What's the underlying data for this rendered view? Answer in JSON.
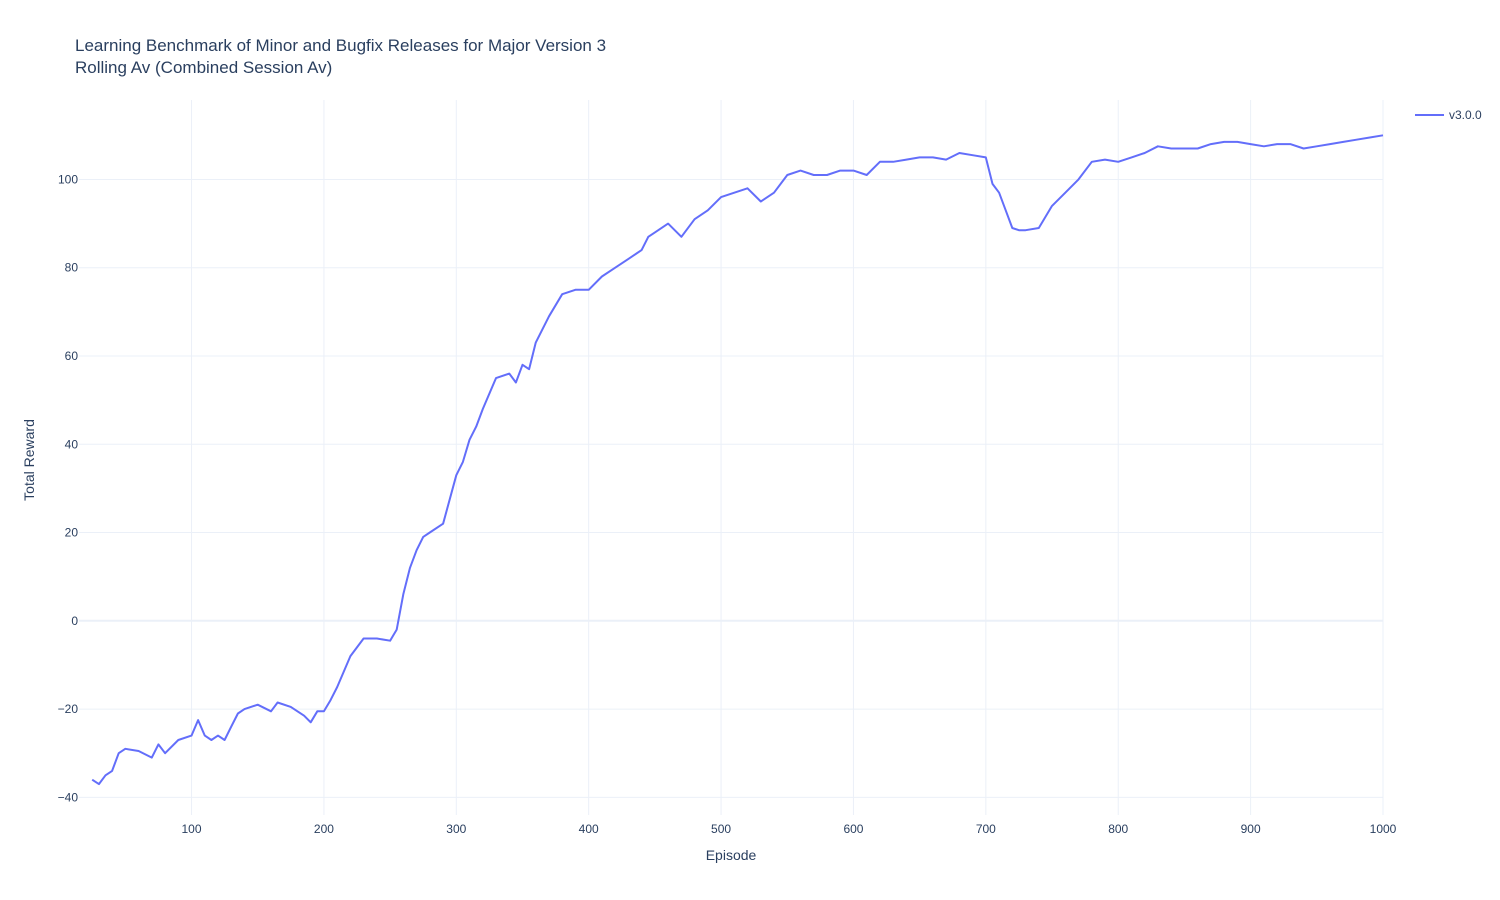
{
  "chart_data": {
    "type": "line",
    "title": "Learning Benchmark of Minor and Bugfix Releases for Major Version 3",
    "subtitle": "Rolling Av (Combined Session Av)",
    "xlabel": "Episode",
    "ylabel": "Total Reward",
    "xlim": [
      15,
      1000
    ],
    "ylim": [
      -44,
      118
    ],
    "xticks": [
      100,
      200,
      300,
      400,
      500,
      600,
      700,
      800,
      900,
      1000
    ],
    "yticks": [
      -40,
      -20,
      0,
      20,
      40,
      60,
      80,
      100
    ],
    "grid": true,
    "legend_position": "top-right",
    "series": [
      {
        "name": "v3.0.0",
        "color": "#636efa",
        "x": [
          25,
          30,
          35,
          40,
          45,
          50,
          60,
          70,
          75,
          80,
          90,
          100,
          105,
          110,
          115,
          120,
          125,
          130,
          135,
          140,
          150,
          160,
          165,
          175,
          185,
          190,
          195,
          200,
          205,
          210,
          220,
          230,
          240,
          250,
          255,
          260,
          265,
          270,
          275,
          280,
          290,
          300,
          305,
          310,
          315,
          320,
          330,
          340,
          345,
          350,
          355,
          360,
          370,
          380,
          390,
          400,
          410,
          420,
          430,
          440,
          445,
          450,
          460,
          470,
          480,
          490,
          500,
          510,
          520,
          530,
          540,
          550,
          560,
          570,
          580,
          590,
          600,
          610,
          620,
          630,
          640,
          650,
          660,
          670,
          680,
          690,
          700,
          705,
          710,
          715,
          720,
          725,
          730,
          740,
          750,
          760,
          770,
          780,
          790,
          800,
          810,
          820,
          830,
          840,
          850,
          860,
          870,
          880,
          890,
          900,
          910,
          920,
          930,
          940,
          950,
          960,
          970,
          980,
          990,
          1000
        ],
        "values": [
          -36,
          -37,
          -35,
          -34,
          -30,
          -29,
          -29.5,
          -31,
          -28,
          -30,
          -27,
          -26,
          -22.5,
          -26,
          -27,
          -26,
          -27,
          -24,
          -21,
          -20,
          -19,
          -20.5,
          -18.5,
          -19.5,
          -21.5,
          -23,
          -20.5,
          -20.5,
          -18,
          -15,
          -8,
          -4,
          -4,
          -4.5,
          -2,
          6,
          12,
          16,
          19,
          20,
          22,
          33,
          36,
          41,
          44,
          48,
          55,
          56,
          54,
          58,
          57,
          63,
          69,
          74,
          75,
          75,
          78,
          80,
          82,
          84,
          87,
          88,
          90,
          87,
          91,
          93,
          96,
          97,
          98,
          95,
          97,
          101,
          102,
          101,
          101,
          102,
          102,
          101,
          104,
          104,
          104.5,
          105,
          105,
          104.5,
          106,
          105.5,
          105,
          99,
          97,
          93,
          89,
          88.5,
          88.5,
          89,
          94,
          97,
          100,
          104,
          104.5,
          104,
          105,
          106,
          107.5,
          107,
          107,
          107,
          108,
          108.5,
          108.5,
          108,
          107.5,
          108,
          108,
          107,
          107.5,
          108,
          108.5,
          109,
          109.5,
          110
        ]
      }
    ]
  }
}
